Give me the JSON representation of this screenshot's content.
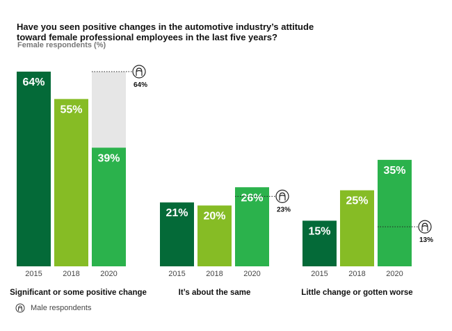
{
  "chart_data": {
    "type": "bar",
    "title": "Have you seen positive changes in the automotive industry’s attitude toward female professional employees in the last five years?",
    "subtitle": "Female respondents (%)",
    "ylim": [
      0,
      64
    ],
    "grid": false,
    "categories": [
      "2015",
      "2018",
      "2020"
    ],
    "groups": [
      {
        "label": "Significant or some positive change",
        "values": [
          64,
          55,
          39
        ],
        "male_2020": 64
      },
      {
        "label": "It’s about the same",
        "values": [
          21,
          20,
          26
        ],
        "male_2020": 23
      },
      {
        "label": "Little change or gotten worse",
        "values": [
          15,
          25,
          35
        ],
        "male_2020": 13
      }
    ],
    "colors": {
      "2015": "#046A38",
      "2018": "#86BC25",
      "2020": "#2BB24C",
      "gap": "#E6E6E6"
    },
    "legend": {
      "label": "Male respondents",
      "icon": "person-icon",
      "placement": "bottom-left"
    }
  }
}
